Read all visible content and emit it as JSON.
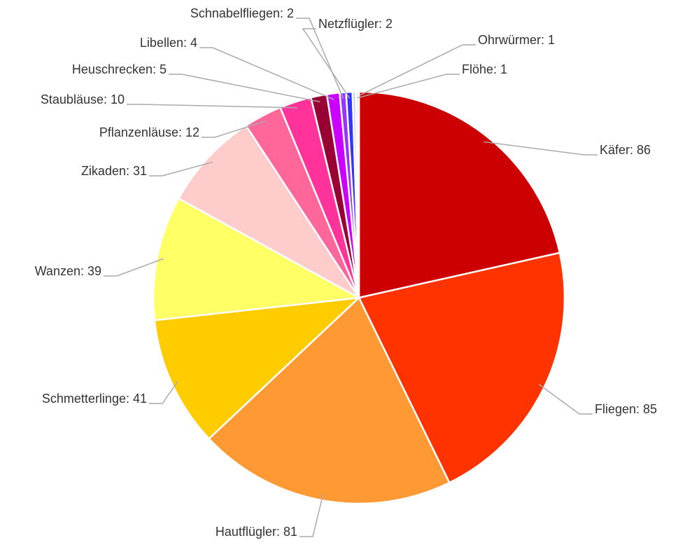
{
  "chart_data": {
    "type": "pie",
    "values": [
      86,
      85,
      81,
      41,
      39,
      31,
      12,
      10,
      5,
      4,
      2,
      2,
      1,
      1
    ],
    "value_labels": [
      "Käfer: 86",
      "Fliegen: 85",
      "Hautflügler: 81",
      "Schmetterlinge: 41",
      "Wanzen: 39",
      "Zikaden: 31",
      "Pflanzenläuse: 12",
      "Staubläuse: 10",
      "Heuschrecken: 5",
      "Libellen: 4",
      "Schnabelfliegen: 2",
      "Netzflügler: 2",
      "Ohrwürmer: 1",
      "Flöhe: 1"
    ],
    "colors": [
      "#cc0000",
      "#ff3300",
      "#ff9933",
      "#ffcc00",
      "#ffff66",
      "#ffcccc",
      "#ff6699",
      "#ff3399",
      "#990033",
      "#cc00ff",
      "#9933ff",
      "#3333ff",
      "#ccccff",
      "#eeeeee"
    ]
  }
}
